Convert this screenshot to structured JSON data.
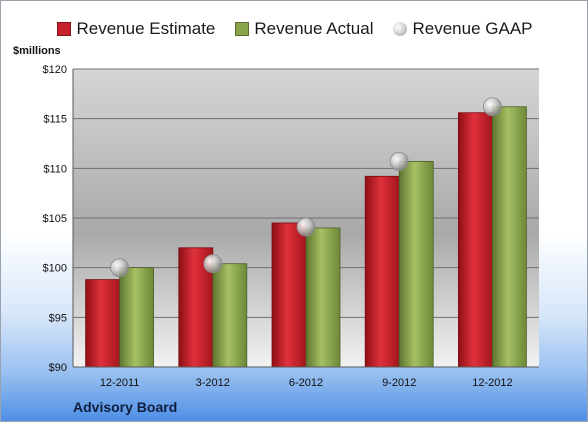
{
  "legend": {
    "estimate": "Revenue Estimate",
    "actual": "Revenue Actual",
    "gaap": "Revenue GAAP"
  },
  "units_label": "$millions",
  "footer_label": "Advisory Board",
  "colors": {
    "estimate": "#c8202a",
    "actual": "#8aa44c",
    "gaap": "#b8b8b8"
  },
  "chart_data": {
    "type": "bar",
    "categories": [
      "12-2011",
      "3-2012",
      "6-2012",
      "9-2012",
      "12-2012"
    ],
    "series": [
      {
        "name": "Revenue Estimate",
        "values": [
          98.8,
          102.0,
          104.5,
          109.2,
          115.6
        ]
      },
      {
        "name": "Revenue Actual",
        "values": [
          100.0,
          100.4,
          104.0,
          110.7,
          116.2
        ]
      },
      {
        "name": "Revenue GAAP",
        "type": "scatter",
        "values": [
          100.0,
          100.4,
          104.1,
          110.7,
          116.2
        ]
      }
    ],
    "ylim": [
      90,
      120
    ],
    "yticks": [
      90,
      95,
      100,
      105,
      110,
      115,
      120
    ],
    "ytick_labels": [
      "$90",
      "$95",
      "$100",
      "$105",
      "$110",
      "$115",
      "$120"
    ],
    "grid": true,
    "legend_position": "top"
  }
}
